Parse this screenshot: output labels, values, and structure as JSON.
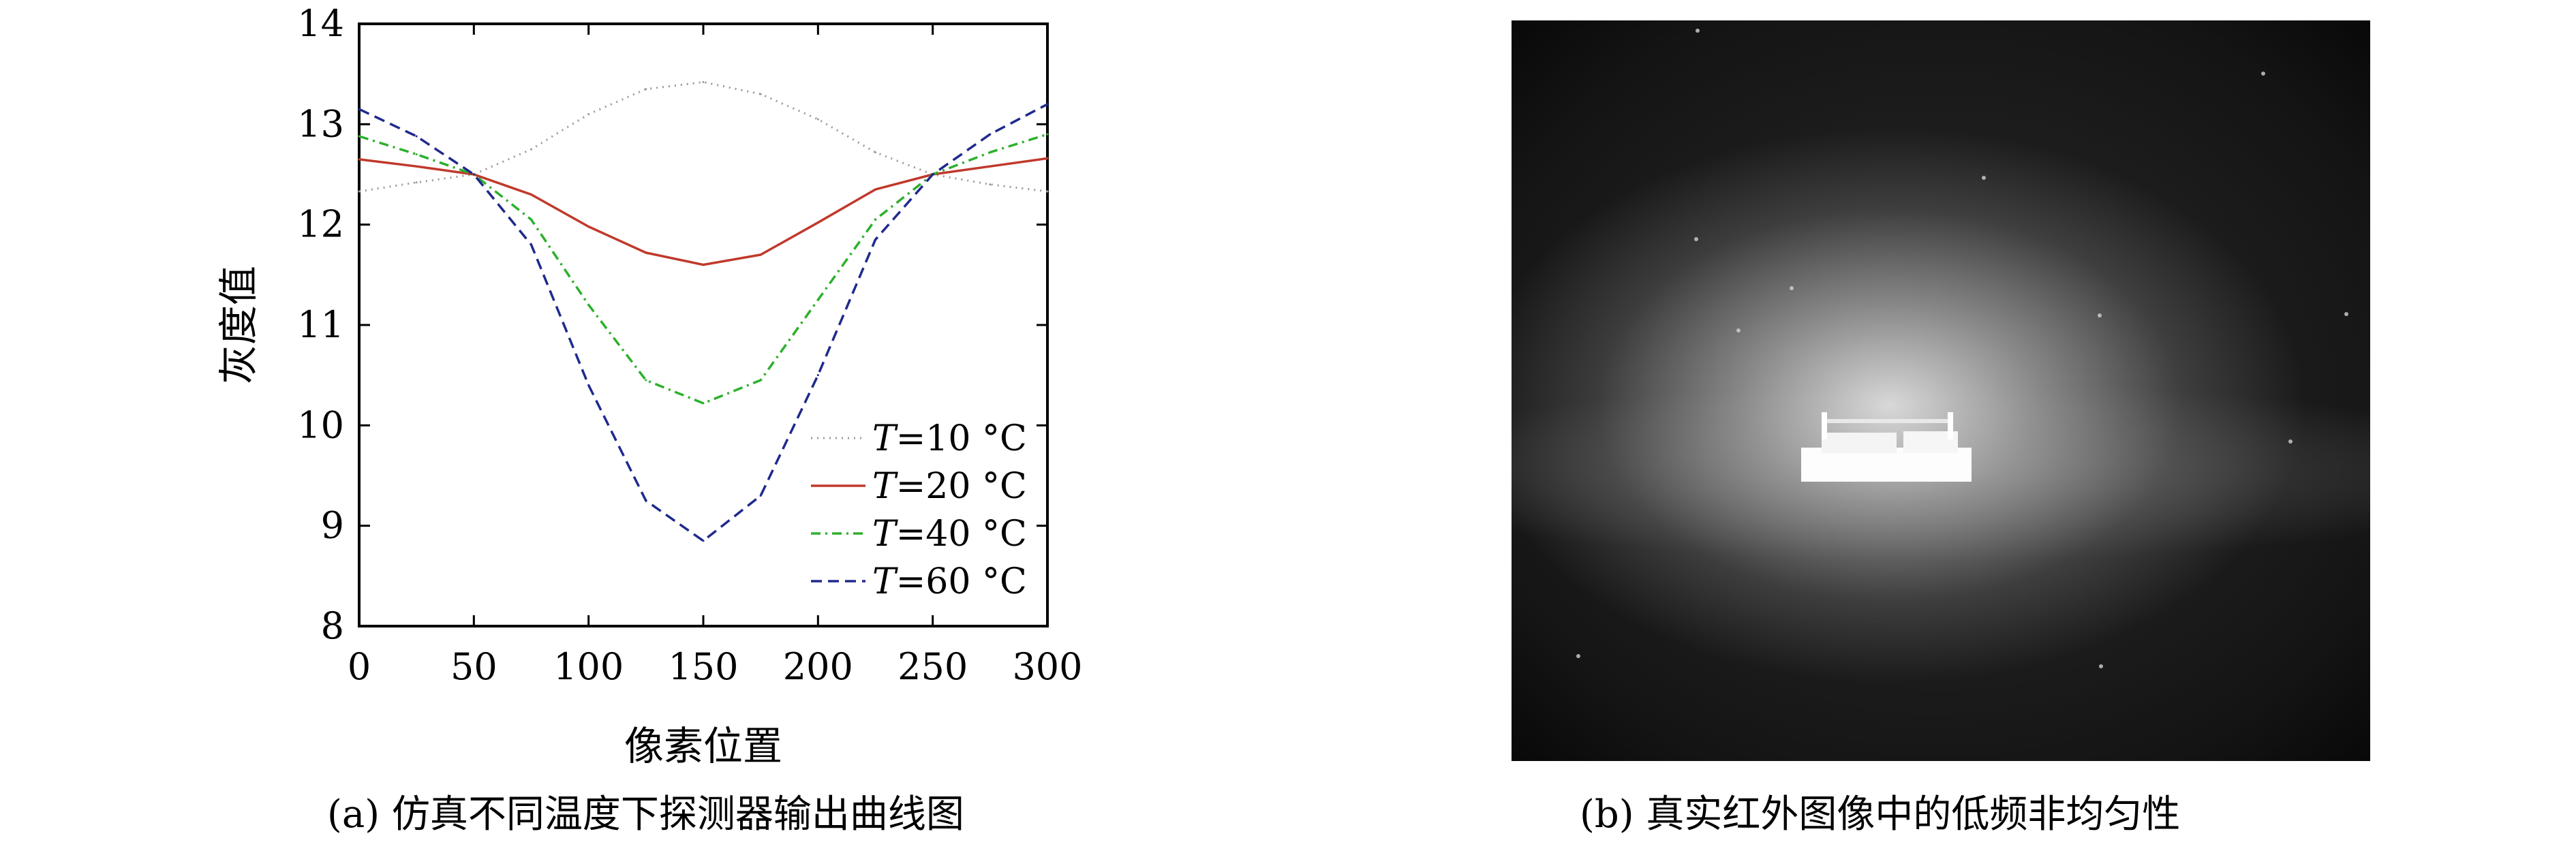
{
  "chart_data": {
    "type": "line",
    "ylabel": "灰度值",
    "xlabel": "像素位置",
    "xlim": [
      0,
      300
    ],
    "ylim": [
      8,
      14
    ],
    "xticks": [
      "0",
      "50",
      "100",
      "150",
      "200",
      "250",
      "300"
    ],
    "yticks": [
      "8",
      "9",
      "10",
      "11",
      "12",
      "13",
      "14"
    ],
    "legend_position": "bottom-right",
    "x": [
      0,
      25,
      50,
      75,
      100,
      125,
      150,
      175,
      200,
      225,
      250,
      275,
      300
    ],
    "series": [
      {
        "name": "T=10 °C",
        "legend_var": "T",
        "legend_value": "=10 °C",
        "color": "#9a9a9a",
        "style": "dotted",
        "values": [
          12.33,
          12.42,
          12.5,
          12.75,
          13.1,
          13.35,
          13.42,
          13.3,
          13.05,
          12.72,
          12.5,
          12.4,
          12.33
        ]
      },
      {
        "name": "T=20 °C",
        "legend_var": "T",
        "legend_value": "=20 °C",
        "color": "#c0392b",
        "style": "solid",
        "values": [
          12.65,
          12.58,
          12.5,
          12.3,
          11.98,
          11.72,
          11.6,
          11.7,
          12.02,
          12.35,
          12.5,
          12.58,
          12.66
        ]
      },
      {
        "name": "T=40 °C",
        "legend_var": "T",
        "legend_value": "=40 °C",
        "color": "#2db02d",
        "style": "dashdot",
        "values": [
          12.88,
          12.7,
          12.5,
          12.05,
          11.2,
          10.45,
          10.22,
          10.45,
          11.25,
          12.05,
          12.5,
          12.72,
          12.9
        ]
      },
      {
        "name": "T=60 °C",
        "legend_var": "T",
        "legend_value": "=60 °C",
        "color": "#1f2a8c",
        "style": "dashed",
        "values": [
          13.15,
          12.88,
          12.5,
          11.8,
          10.4,
          9.25,
          8.85,
          9.3,
          10.5,
          11.85,
          12.5,
          12.9,
          13.2
        ]
      }
    ]
  },
  "captions": {
    "a": "(a) 仿真不同温度下探测器输出曲线图",
    "b": "(b) 真实红外图像中的低频非均匀性"
  }
}
